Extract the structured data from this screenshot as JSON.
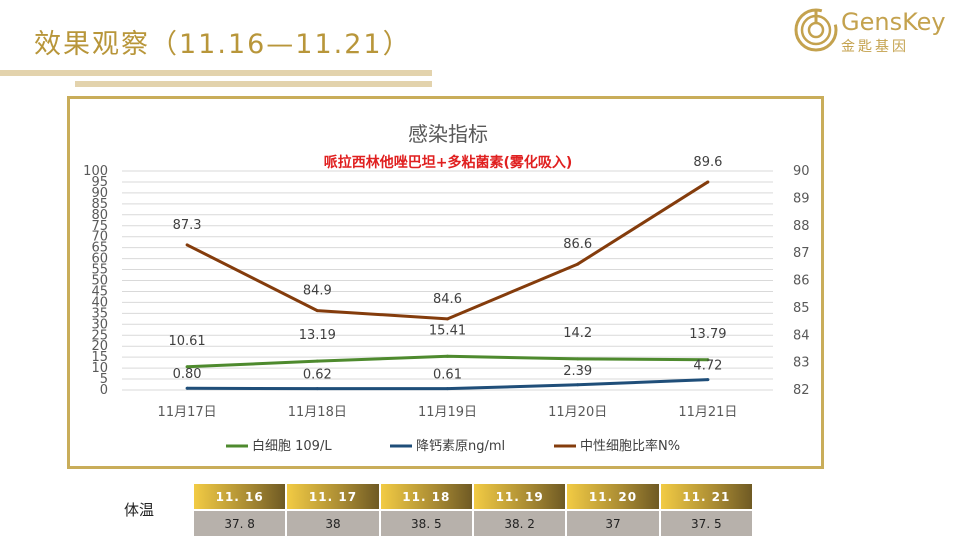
{
  "page": {
    "title": "效果观察（11.16—11.21）"
  },
  "logo": {
    "en": "GensKey",
    "cn": "金匙基因"
  },
  "colors": {
    "gold": "#b8963a",
    "wbc": "#4e8a2e",
    "pct": "#1f4e79",
    "neut": "#843c0c"
  },
  "chart_data": {
    "type": "line",
    "title": "感染指标",
    "subtitle": "哌拉西林他唑巴坦+多粘菌素(雾化吸入)",
    "categories": [
      "11月17日",
      "11月18日",
      "11月19日",
      "11月20日",
      "11月21日"
    ],
    "series": [
      {
        "name": "白细胞 109/L",
        "axis": "left",
        "color": "#4e8a2e",
        "values": [
          10.61,
          13.19,
          15.41,
          14.2,
          13.79
        ],
        "labels": [
          "10.61",
          "13.19",
          "15.41",
          "14.2",
          "13.79"
        ]
      },
      {
        "name": "降钙素原ng/ml",
        "axis": "left",
        "color": "#1f4e79",
        "values": [
          0.8,
          0.62,
          0.61,
          2.39,
          4.72
        ],
        "labels": [
          "0.80",
          "0.62",
          "0.61",
          "2.39",
          "4.72"
        ]
      },
      {
        "name": "中性细胞比率N%",
        "axis": "right",
        "color": "#843c0c",
        "values": [
          87.3,
          84.9,
          84.6,
          86.6,
          89.6
        ],
        "labels": [
          "87.3",
          "84.9",
          "84.6",
          "86.6",
          "89.6"
        ]
      }
    ],
    "y_left": {
      "min": 0,
      "max": 100,
      "step": 5
    },
    "y_right": {
      "min": 82,
      "max": 90,
      "step": 1
    },
    "grid": true,
    "legend_position": "bottom"
  },
  "temperature": {
    "label": "体温",
    "dates": [
      "11. 16",
      "11. 17",
      "11. 18",
      "11. 19",
      "11. 20",
      "11. 21"
    ],
    "values": [
      "37. 8",
      "38",
      "38. 5",
      "38. 2",
      "37",
      "37. 5"
    ]
  }
}
